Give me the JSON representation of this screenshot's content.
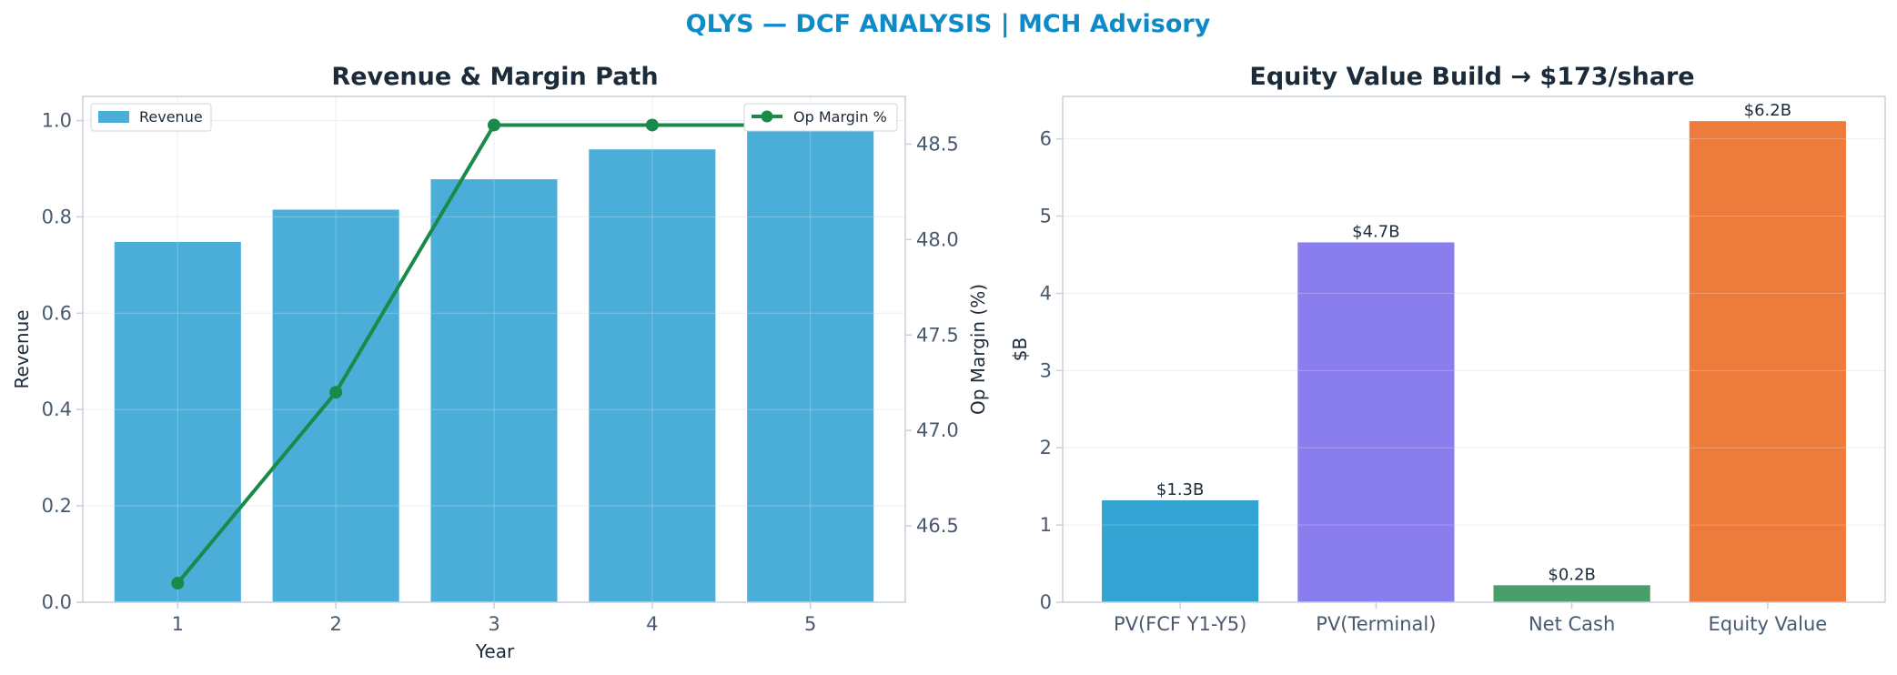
{
  "figure": {
    "title": "QLYS — DCF ANALYSIS | MCH Advisory"
  },
  "colors": {
    "title": "#0e8ac6",
    "revenue_bar": "#4aaed9",
    "margin_line": "#1a8a4a",
    "equity_bars": [
      "#33a3d4",
      "#8a7ded",
      "#4a9e6c",
      "#ec7b3c"
    ]
  },
  "chart_data": [
    {
      "type": "bar+line",
      "title": "Revenue & Margin Path",
      "xlabel": "Year",
      "ylabel": "Revenue",
      "y2label": "Op Margin (%)",
      "categories": [
        "1",
        "2",
        "3",
        "4",
        "5"
      ],
      "series": [
        {
          "name": "Revenue",
          "type": "bar",
          "axis": "left",
          "values": [
            0.748,
            0.815,
            0.878,
            0.94,
            1.0
          ]
        },
        {
          "name": "Op Margin %",
          "type": "line",
          "axis": "right",
          "values": [
            46.2,
            47.2,
            48.6,
            48.6,
            48.6
          ]
        }
      ],
      "ylim": [
        0,
        1.05
      ],
      "y2lim": [
        46.1,
        48.75
      ],
      "yticks": [
        "0.0",
        "0.2",
        "0.4",
        "0.6",
        "0.8",
        "1.0"
      ],
      "y2ticks": [
        "46.5",
        "47.0",
        "47.5",
        "48.0",
        "48.5"
      ],
      "legend": [
        "upper-left",
        "upper-right"
      ],
      "grid": true
    },
    {
      "type": "bar",
      "title": "Equity Value Build → $173/share",
      "ylabel": "$B",
      "categories": [
        "PV(FCF Y1-Y5)",
        "PV(Terminal)",
        "Net Cash",
        "Equity Value"
      ],
      "values": [
        1.32,
        4.66,
        0.22,
        6.23
      ],
      "data_labels": [
        "$1.3B",
        "$4.7B",
        "$0.2B",
        "$6.2B"
      ],
      "ylim": [
        0,
        6.55
      ],
      "yticks": [
        "0",
        "1",
        "2",
        "3",
        "4",
        "5",
        "6"
      ],
      "grid": true
    }
  ]
}
